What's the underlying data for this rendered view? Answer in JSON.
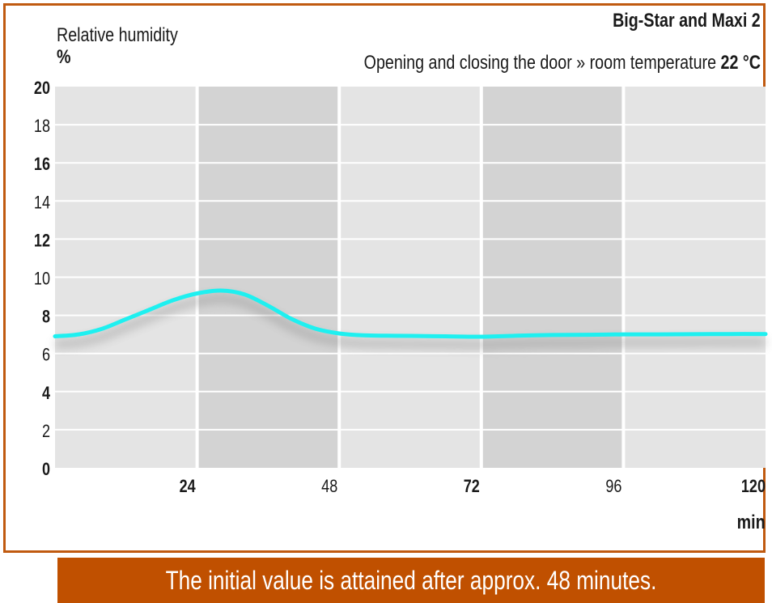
{
  "header": {
    "product": "Big-Star and Maxi 2",
    "subtitle_prefix": "Opening and closing the door » room temperature ",
    "subtitle_temp": "22 °C"
  },
  "footer": {
    "caption": "The initial value is attained after approx. 48 minutes."
  },
  "colors": {
    "frame": "#c05a10",
    "banner": "#c05000",
    "line": "#1ef0f0",
    "band_light": "#e4e4e4",
    "band_dark": "#d3d3d3",
    "grid": "#ffffff"
  },
  "chart_data": {
    "type": "line",
    "ylabel": "Relative humidity",
    "yunit": "%",
    "xunit": "min",
    "xlim": [
      0,
      120
    ],
    "ylim": [
      0,
      20
    ],
    "yticks": [
      {
        "value": 0,
        "label": "0",
        "bold": true
      },
      {
        "value": 2,
        "label": "2",
        "bold": false
      },
      {
        "value": 4,
        "label": "4",
        "bold": true
      },
      {
        "value": 6,
        "label": "6",
        "bold": false
      },
      {
        "value": 8,
        "label": "8",
        "bold": true
      },
      {
        "value": 10,
        "label": "10",
        "bold": false
      },
      {
        "value": 12,
        "label": "12",
        "bold": true
      },
      {
        "value": 14,
        "label": "14",
        "bold": false
      },
      {
        "value": 16,
        "label": "16",
        "bold": true
      },
      {
        "value": 18,
        "label": "18",
        "bold": false
      },
      {
        "value": 20,
        "label": "20",
        "bold": true
      }
    ],
    "xticks": [
      {
        "value": 24,
        "label": "24",
        "bold": true
      },
      {
        "value": 48,
        "label": "48",
        "bold": false
      },
      {
        "value": 72,
        "label": "72",
        "bold": true
      },
      {
        "value": 96,
        "label": "96",
        "bold": false
      },
      {
        "value": 120,
        "label": "120",
        "bold": true
      }
    ],
    "shaded_bands": [
      [
        24,
        48
      ],
      [
        72,
        96
      ]
    ],
    "series": [
      {
        "x": [
          0,
          4,
          8,
          12,
          16,
          20,
          24,
          28,
          32,
          36,
          40,
          44,
          48,
          52,
          56,
          60,
          66,
          72,
          78,
          84,
          90,
          96,
          102,
          108,
          114,
          120
        ],
        "y": [
          6.9,
          7.0,
          7.3,
          7.8,
          8.3,
          8.8,
          9.15,
          9.3,
          9.1,
          8.5,
          7.8,
          7.3,
          7.05,
          6.95,
          6.93,
          6.92,
          6.9,
          6.88,
          6.93,
          6.97,
          6.98,
          7.0,
          7.0,
          7.01,
          7.02,
          7.02
        ]
      }
    ]
  }
}
